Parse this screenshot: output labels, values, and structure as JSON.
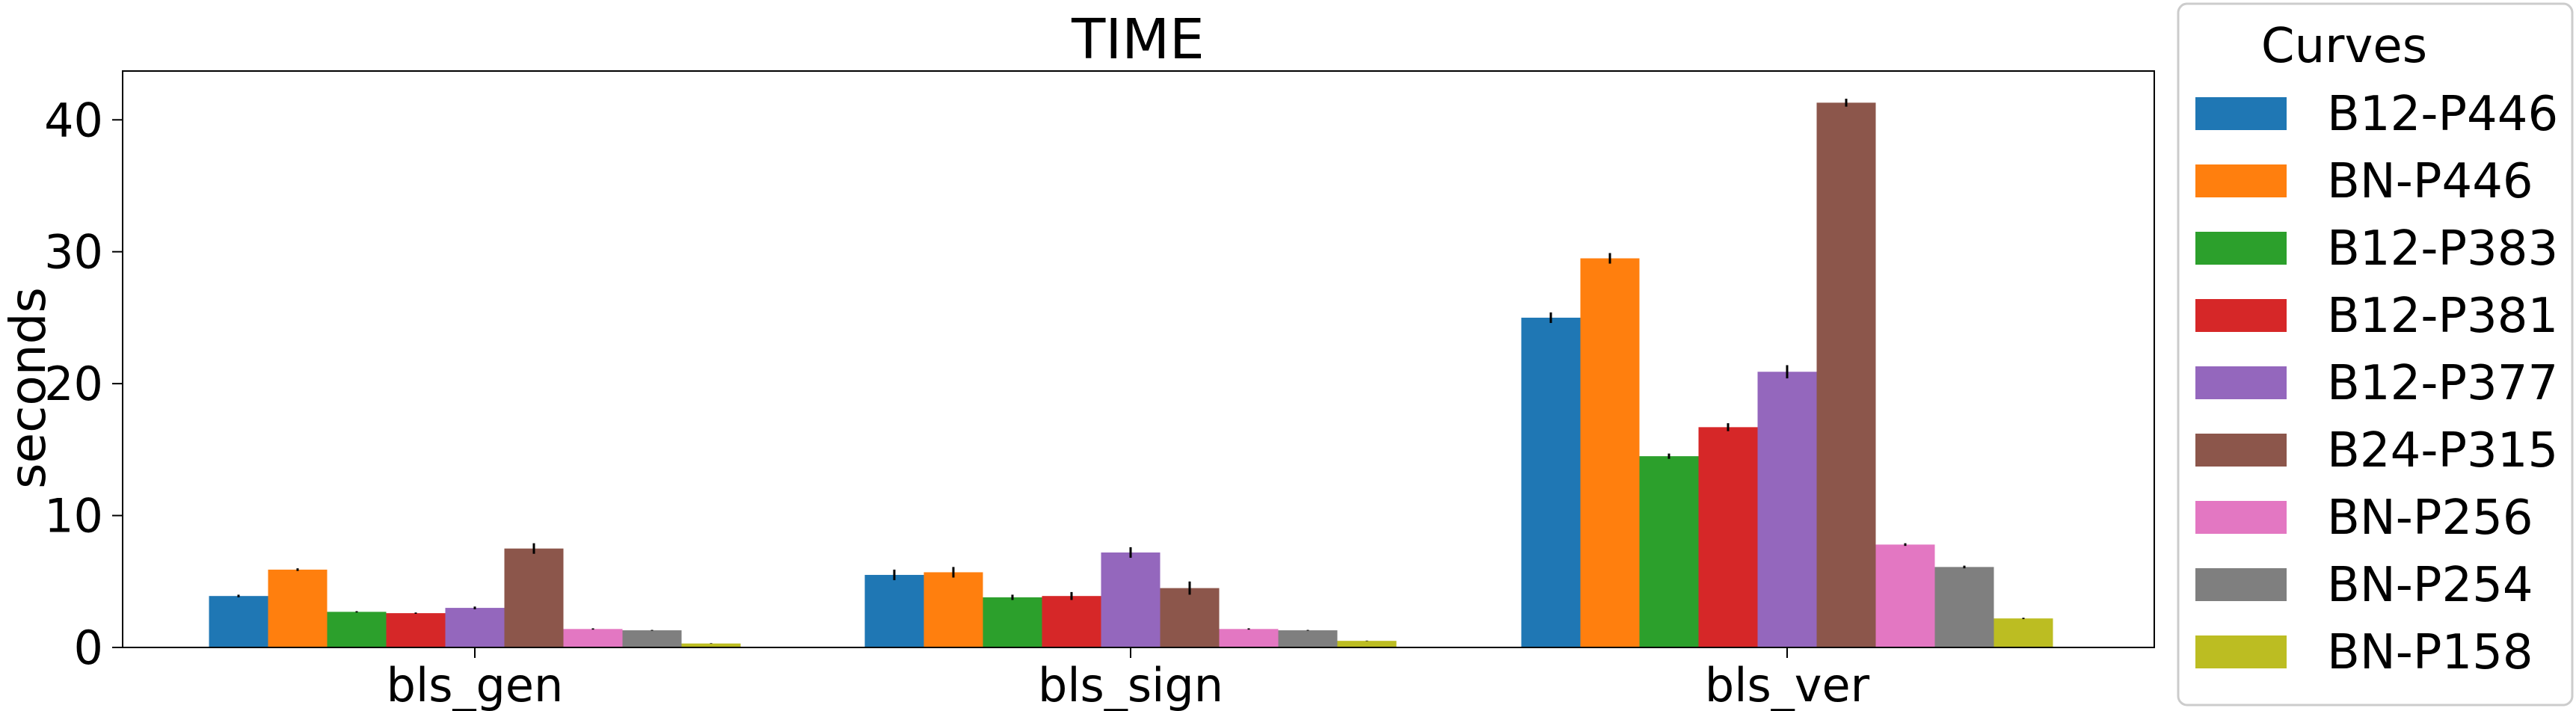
{
  "chart_data": {
    "type": "bar",
    "title": "TIME",
    "xlabel": "",
    "ylabel": "seconds",
    "ylim": [
      0,
      43.7
    ],
    "yticks": [
      0,
      10,
      20,
      30,
      40
    ],
    "grid": false,
    "legend": {
      "title": "Curves",
      "placement": "outside-right"
    },
    "categories": [
      "bls_gen",
      "bls_sign",
      "bls_ver"
    ],
    "series": [
      {
        "name": "B12-P446",
        "color": "#1f77b4",
        "values": [
          3.9,
          5.5,
          25.0
        ],
        "errors": [
          0.1,
          0.4,
          0.4
        ]
      },
      {
        "name": "BN-P446",
        "color": "#ff7f0e",
        "values": [
          5.9,
          5.7,
          29.5
        ],
        "errors": [
          0.1,
          0.4,
          0.4
        ]
      },
      {
        "name": "B12-P383",
        "color": "#2ca02c",
        "values": [
          2.7,
          3.8,
          14.5
        ],
        "errors": [
          0.05,
          0.2,
          0.2
        ]
      },
      {
        "name": "B12-P381",
        "color": "#d62728",
        "values": [
          2.6,
          3.9,
          16.7
        ],
        "errors": [
          0.05,
          0.3,
          0.3
        ]
      },
      {
        "name": "B12-P377",
        "color": "#9467bd",
        "values": [
          3.0,
          7.2,
          20.9
        ],
        "errors": [
          0.1,
          0.4,
          0.5
        ]
      },
      {
        "name": "B24-P315",
        "color": "#8c564b",
        "values": [
          7.5,
          4.5,
          41.3
        ],
        "errors": [
          0.4,
          0.5,
          0.3
        ]
      },
      {
        "name": "BN-P256",
        "color": "#e377c2",
        "values": [
          1.4,
          1.4,
          7.8
        ],
        "errors": [
          0.05,
          0.05,
          0.1
        ]
      },
      {
        "name": "BN-P254",
        "color": "#7f7f7f",
        "values": [
          1.3,
          1.3,
          6.1
        ],
        "errors": [
          0.03,
          0.03,
          0.1
        ]
      },
      {
        "name": "BN-P158",
        "color": "#bcbd22",
        "values": [
          0.3,
          0.5,
          2.2
        ],
        "errors": [
          0.02,
          0.02,
          0.05
        ]
      }
    ]
  }
}
